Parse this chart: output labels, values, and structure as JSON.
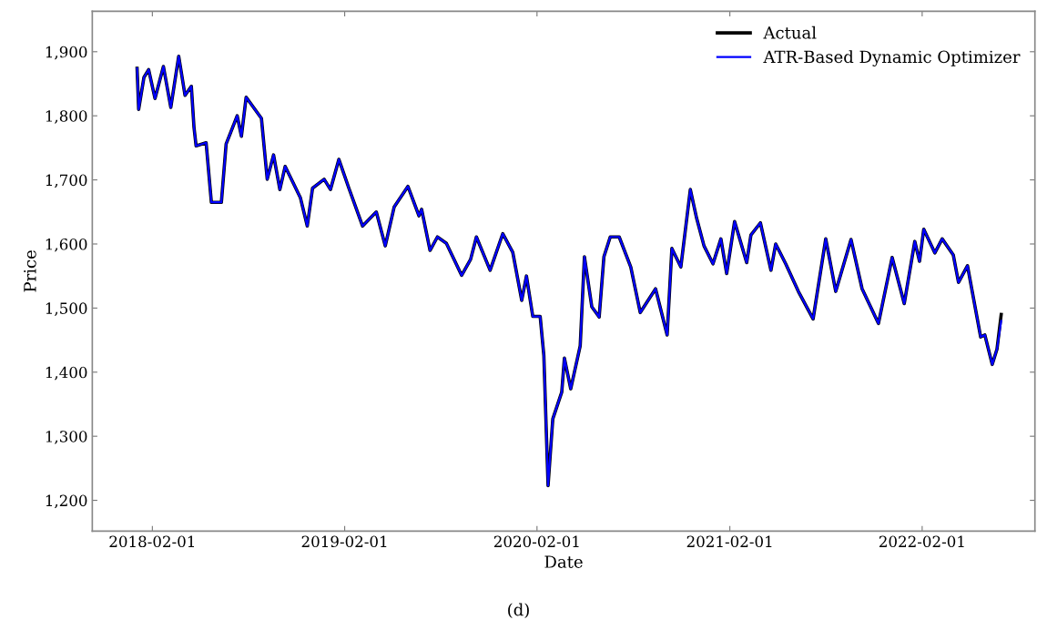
{
  "chart_data": {
    "type": "line",
    "xlabel": "Date",
    "ylabel": "Price",
    "annotations": [
      "(d)"
    ],
    "x": [
      "2018-01-03",
      "2018-01-06",
      "2018-01-16",
      "2018-01-25",
      "2018-02-06",
      "2018-02-22",
      "2018-03-08",
      "2018-03-23",
      "2018-04-04",
      "2018-04-16",
      "2018-04-21",
      "2018-04-25",
      "2018-05-14",
      "2018-05-24",
      "2018-06-12",
      "2018-06-21",
      "2018-07-12",
      "2018-07-20",
      "2018-07-29",
      "2018-08-27",
      "2018-09-07",
      "2018-09-19",
      "2018-10-01",
      "2018-10-11",
      "2018-11-09",
      "2018-11-22",
      "2018-12-02",
      "2018-12-24",
      "2019-01-05",
      "2019-01-21",
      "2019-02-09",
      "2019-03-07",
      "2019-04-02",
      "2019-04-19",
      "2019-05-06",
      "2019-06-01",
      "2019-06-22",
      "2019-06-27",
      "2019-07-13",
      "2019-07-27",
      "2019-08-13",
      "2019-09-11",
      "2019-09-28",
      "2019-10-09",
      "2019-11-04",
      "2019-11-28",
      "2019-12-17",
      "2020-01-03",
      "2020-01-12",
      "2020-01-24",
      "2020-02-07",
      "2020-02-14",
      "2020-02-22",
      "2020-03-02",
      "2020-03-19",
      "2020-03-24",
      "2020-04-05",
      "2020-04-23",
      "2020-05-01",
      "2020-05-15",
      "2020-05-29",
      "2020-06-07",
      "2020-06-19",
      "2020-07-06",
      "2020-07-28",
      "2020-08-15",
      "2020-09-13",
      "2020-10-05",
      "2020-10-14",
      "2020-10-31",
      "2020-11-18",
      "2020-11-30",
      "2020-12-14",
      "2020-12-31",
      "2021-01-15",
      "2021-01-26",
      "2021-02-10",
      "2021-03-05",
      "2021-03-13",
      "2021-03-31",
      "2021-04-20",
      "2021-04-29",
      "2021-05-18",
      "2021-06-11",
      "2021-07-09",
      "2021-08-02",
      "2021-08-21",
      "2021-09-19",
      "2021-10-10",
      "2021-11-10",
      "2021-12-06",
      "2021-12-29",
      "2022-01-18",
      "2022-01-27",
      "2022-02-04",
      "2022-02-25",
      "2022-03-11",
      "2022-04-01",
      "2022-04-11",
      "2022-04-28",
      "2022-05-07",
      "2022-05-23",
      "2022-05-31",
      "2022-06-14",
      "2022-06-23",
      "2022-07-01"
    ],
    "series": [
      {
        "name": "Actual",
        "color": "#000000",
        "values": [
          1874,
          1810,
          1860,
          1872,
          1827,
          1877,
          1813,
          1893,
          1832,
          1846,
          1782,
          1753,
          1758,
          1665,
          1665,
          1756,
          1800,
          1768,
          1829,
          1796,
          1701,
          1739,
          1685,
          1721,
          1672,
          1628,
          1687,
          1701,
          1685,
          1732,
          1687,
          1628,
          1650,
          1597,
          1658,
          1690,
          1644,
          1654,
          1590,
          1611,
          1601,
          1551,
          1576,
          1611,
          1559,
          1616,
          1587,
          1512,
          1550,
          1487,
          1487,
          1426,
          1223,
          1327,
          1369,
          1422,
          1374,
          1441,
          1580,
          1502,
          1486,
          1580,
          1611,
          1611,
          1564,
          1493,
          1530,
          1458,
          1593,
          1564,
          1685,
          1640,
          1597,
          1569,
          1608,
          1554,
          1635,
          1571,
          1614,
          1633,
          1559,
          1600,
          1569,
          1526,
          1483,
          1608,
          1526,
          1607,
          1530,
          1476,
          1579,
          1507,
          1604,
          1573,
          1623,
          1586,
          1608,
          1583,
          1540,
          1566,
          1526,
          1455,
          1458,
          1412,
          1436,
          1490
        ]
      },
      {
        "name": "ATR-Based Dynamic Optimizer",
        "color": "#0000ff",
        "values": [
          1874,
          1810,
          1860,
          1872,
          1827,
          1877,
          1813,
          1893,
          1832,
          1846,
          1782,
          1753,
          1758,
          1665,
          1665,
          1756,
          1800,
          1768,
          1829,
          1796,
          1701,
          1739,
          1685,
          1721,
          1672,
          1628,
          1687,
          1701,
          1685,
          1732,
          1687,
          1628,
          1650,
          1597,
          1658,
          1690,
          1644,
          1654,
          1590,
          1611,
          1601,
          1551,
          1576,
          1611,
          1559,
          1616,
          1587,
          1512,
          1550,
          1487,
          1487,
          1426,
          1223,
          1327,
          1369,
          1422,
          1374,
          1441,
          1580,
          1502,
          1486,
          1580,
          1611,
          1611,
          1564,
          1493,
          1530,
          1458,
          1593,
          1564,
          1685,
          1640,
          1597,
          1569,
          1608,
          1554,
          1635,
          1571,
          1614,
          1633,
          1559,
          1600,
          1569,
          1526,
          1483,
          1608,
          1526,
          1607,
          1530,
          1476,
          1579,
          1507,
          1604,
          1573,
          1623,
          1586,
          1608,
          1583,
          1540,
          1566,
          1526,
          1455,
          1458,
          1412,
          1436,
          1480
        ]
      }
    ],
    "xlim": [
      "2017-10-10",
      "2022-09-03"
    ],
    "xticks": [
      "2018-02-01",
      "2019-02-01",
      "2020-02-01",
      "2021-02-01",
      "2022-02-01"
    ],
    "ylim": [
      1152,
      1963
    ],
    "yticks": [
      {
        "value": 1200,
        "label": "1,200"
      },
      {
        "value": 1300,
        "label": "1,300"
      },
      {
        "value": 1400,
        "label": "1,400"
      },
      {
        "value": 1500,
        "label": "1,500"
      },
      {
        "value": 1600,
        "label": "1,600"
      },
      {
        "value": 1700,
        "label": "1,700"
      },
      {
        "value": 1800,
        "label": "1,800"
      },
      {
        "value": 1900,
        "label": "1,900"
      }
    ],
    "legend": "top right",
    "grid": false,
    "marker": "none",
    "line_style": "solid"
  }
}
